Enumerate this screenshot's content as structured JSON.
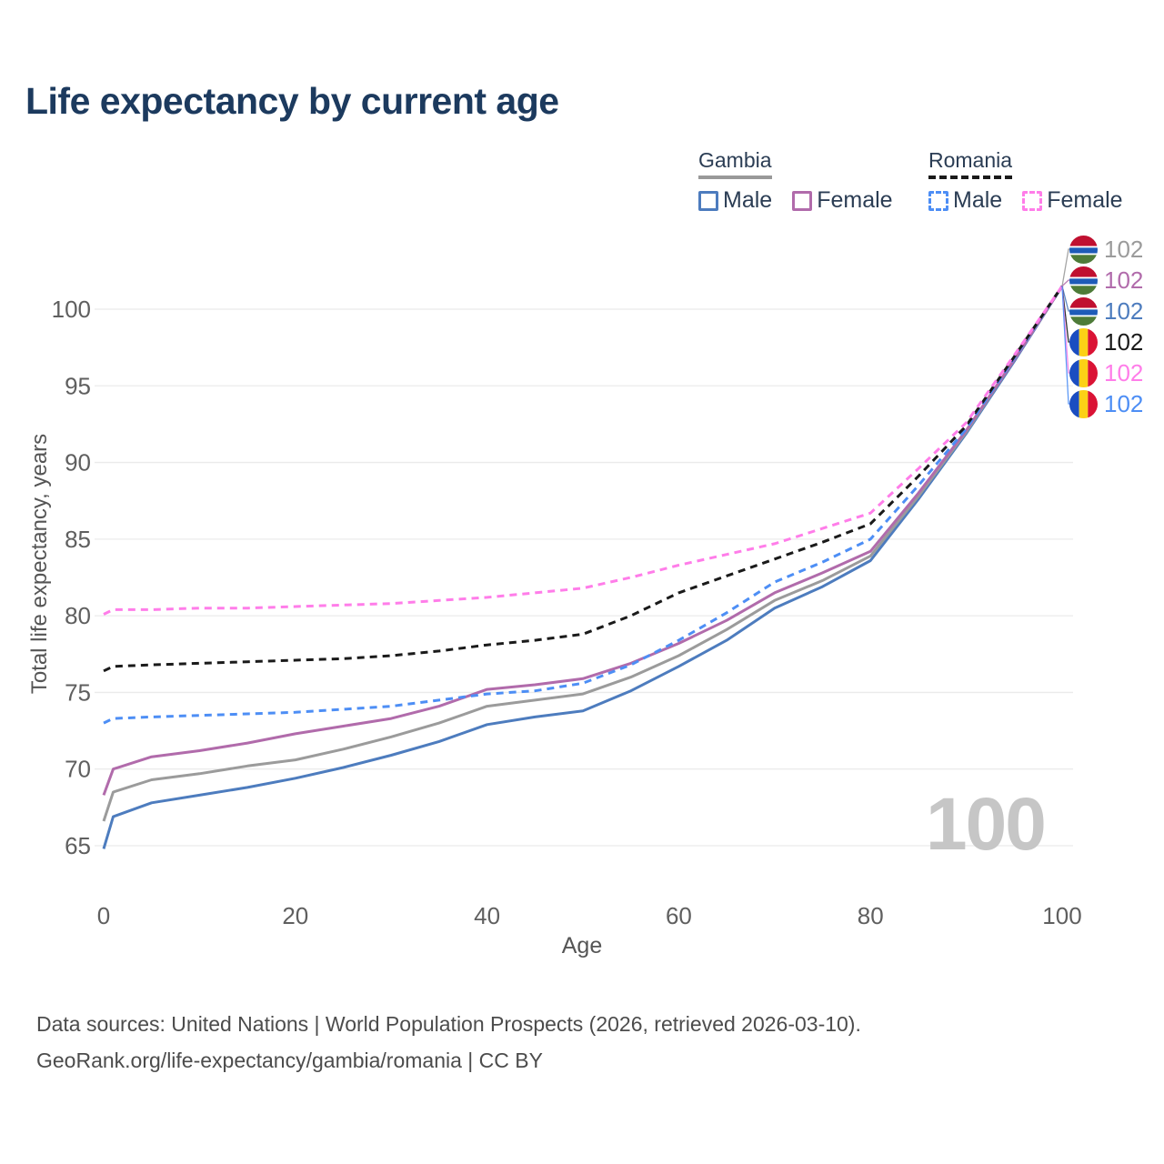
{
  "title": "Life expectancy by current age",
  "legend": {
    "groups": [
      {
        "name": "Gambia",
        "line_style": "solid",
        "underline_color": "#999999",
        "items": [
          {
            "label": "Male",
            "color": "#4d7cbe"
          },
          {
            "label": "Female",
            "color": "#b16bab"
          }
        ]
      },
      {
        "name": "Romania",
        "line_style": "dashed",
        "underline_color": "#1a1a1a",
        "items": [
          {
            "label": "Male",
            "color": "#4d8ef5"
          },
          {
            "label": "Female",
            "color": "#ff7de9"
          }
        ]
      }
    ]
  },
  "watermark": {
    "value": "100"
  },
  "footer": {
    "line1": "Data sources: United Nations | World Population Prospects (2026, retrieved 2026-03-10).",
    "line2": "GeoRank.org/life-expectancy/gambia/romania | CC BY"
  },
  "chart_data": {
    "type": "line",
    "title": "Life expectancy by current age",
    "xlabel": "Age",
    "ylabel": "Total life expectancy, years",
    "x_ticks": [
      0,
      20,
      40,
      60,
      80,
      100
    ],
    "y_ticks": [
      65,
      70,
      75,
      80,
      85,
      90,
      95,
      100
    ],
    "xlim": [
      0,
      100
    ],
    "ylim": [
      65,
      102
    ],
    "grid": "horizontal",
    "axis_color": "#5f5f5f",
    "grid_color": "#ebebeb",
    "x": [
      0,
      1,
      5,
      10,
      15,
      20,
      25,
      30,
      35,
      40,
      45,
      50,
      55,
      60,
      65,
      70,
      75,
      80,
      85,
      90,
      95,
      100
    ],
    "series": [
      {
        "name": "Gambia — Both sexes",
        "country": "Gambia",
        "sex": "both",
        "color": "#9b9b9b",
        "dash": false,
        "flag": "gambia",
        "end_label": "102",
        "values": [
          66.6,
          68.5,
          69.3,
          69.7,
          70.2,
          70.6,
          71.3,
          72.1,
          73.0,
          74.1,
          74.5,
          74.9,
          76.0,
          77.4,
          79.1,
          81.0,
          82.3,
          83.9,
          87.8,
          92.0,
          96.7,
          101.5
        ]
      },
      {
        "name": "Gambia — Female",
        "country": "Gambia",
        "sex": "female",
        "color": "#b16bab",
        "dash": false,
        "flag": "gambia",
        "end_label": "102",
        "values": [
          68.3,
          70.0,
          70.8,
          71.2,
          71.7,
          72.3,
          72.8,
          73.3,
          74.1,
          75.2,
          75.5,
          75.9,
          76.9,
          78.2,
          79.7,
          81.5,
          82.8,
          84.2,
          88.0,
          92.1,
          96.7,
          101.5
        ]
      },
      {
        "name": "Gambia — Male",
        "country": "Gambia",
        "sex": "male",
        "color": "#4d7cbe",
        "dash": false,
        "flag": "gambia",
        "end_label": "102",
        "values": [
          64.8,
          66.9,
          67.8,
          68.3,
          68.8,
          69.4,
          70.1,
          70.9,
          71.8,
          72.9,
          73.4,
          73.8,
          75.1,
          76.7,
          78.4,
          80.5,
          81.9,
          83.6,
          87.6,
          91.9,
          96.6,
          101.5
        ]
      },
      {
        "name": "Romania — Both sexes",
        "country": "Romania",
        "sex": "both",
        "color": "#1a1a1a",
        "dash": true,
        "flag": "romania",
        "end_label": "102",
        "values": [
          76.4,
          76.7,
          76.8,
          76.9,
          77.0,
          77.1,
          77.2,
          77.4,
          77.7,
          78.1,
          78.4,
          78.8,
          80.0,
          81.5,
          82.6,
          83.7,
          84.8,
          86.0,
          89.1,
          92.4,
          96.9,
          101.5
        ]
      },
      {
        "name": "Romania — Female",
        "country": "Romania",
        "sex": "female",
        "color": "#ff7de9",
        "dash": true,
        "flag": "romania",
        "end_label": "102",
        "values": [
          80.1,
          80.4,
          80.4,
          80.5,
          80.5,
          80.6,
          80.7,
          80.8,
          81.0,
          81.2,
          81.5,
          81.8,
          82.5,
          83.3,
          84.0,
          84.7,
          85.7,
          86.7,
          89.6,
          92.6,
          97.0,
          101.5
        ]
      },
      {
        "name": "Romania — Male",
        "country": "Romania",
        "sex": "male",
        "color": "#4d8ef5",
        "dash": true,
        "flag": "romania",
        "end_label": "102",
        "values": [
          73.0,
          73.3,
          73.4,
          73.5,
          73.6,
          73.7,
          73.9,
          74.1,
          74.5,
          74.9,
          75.1,
          75.6,
          76.8,
          78.4,
          80.2,
          82.2,
          83.5,
          85.0,
          88.5,
          92.2,
          96.8,
          101.5
        ]
      }
    ],
    "flag_colors": {
      "gambia": {
        "red": "#c01030",
        "blue": "#1e5bb8",
        "green": "#4e7b38",
        "white": "#ffffff"
      },
      "romania": {
        "blue": "#1b4dc1",
        "yellow": "#fcd116",
        "red": "#da1335"
      }
    }
  }
}
